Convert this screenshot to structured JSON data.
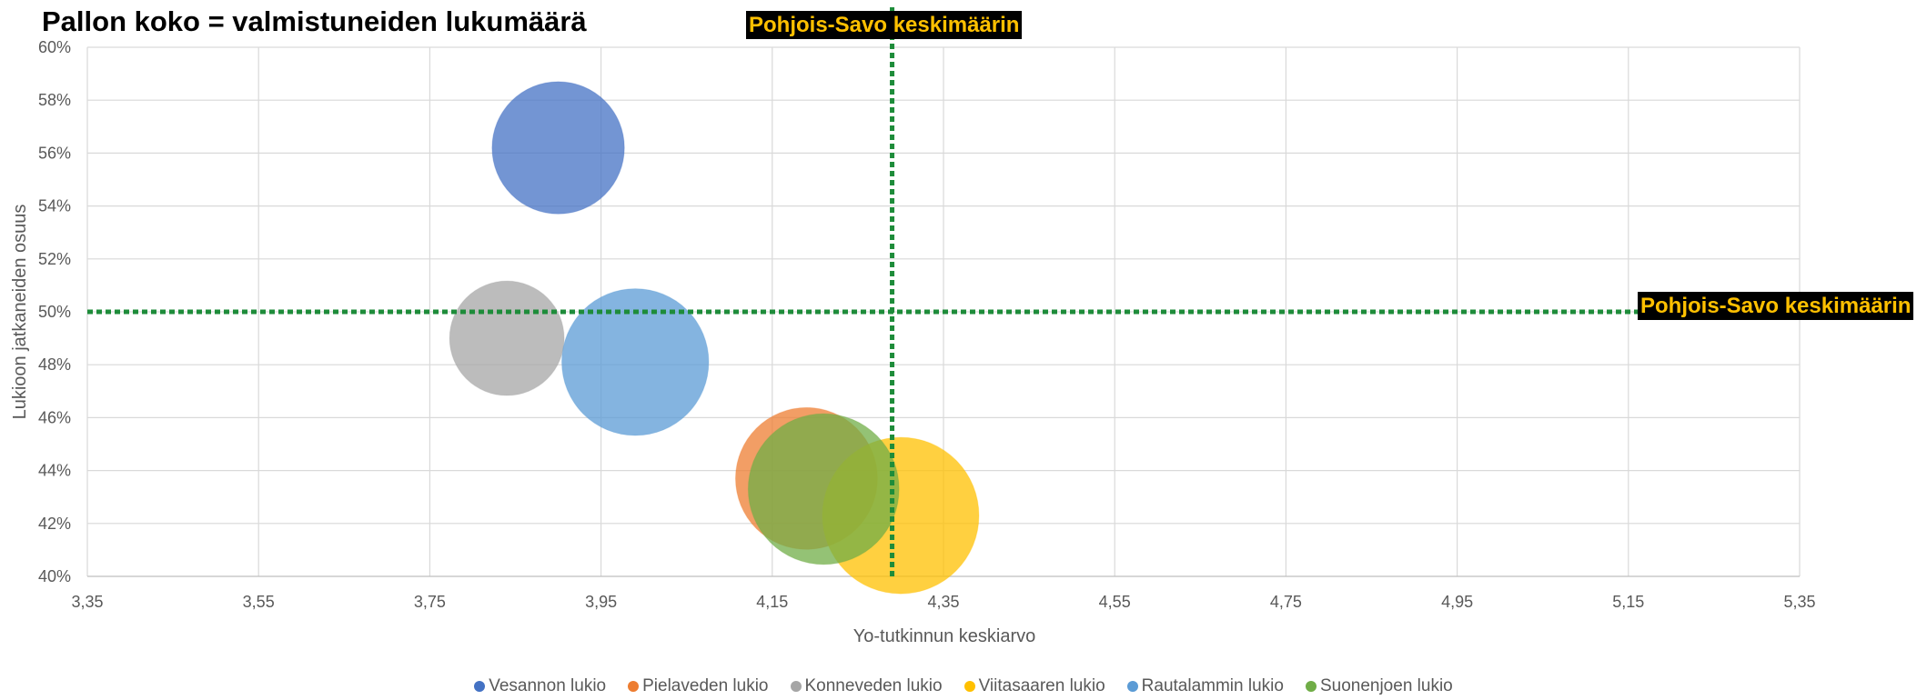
{
  "chart_data": {
    "type": "bubble",
    "title": "Pallon koko = valmistuneiden lukumäärä",
    "xlabel": "Yo-tutkinnun keskiarvo",
    "ylabel": "Lukioon jatkaneiden osuus",
    "xlim": [
      3.35,
      5.35
    ],
    "ylim": [
      0.4,
      0.6
    ],
    "x_ticks": [
      "3,35",
      "3,55",
      "3,75",
      "3,95",
      "4,15",
      "4,35",
      "4,55",
      "4,75",
      "4,95",
      "5,15",
      "5,35"
    ],
    "y_ticks": [
      "40%",
      "42%",
      "44%",
      "46%",
      "48%",
      "50%",
      "52%",
      "54%",
      "56%",
      "58%",
      "60%"
    ],
    "grid": true,
    "legend_position": "bottom",
    "series": [
      {
        "name": "Vesannon lukio",
        "x": 3.9,
        "y": 0.562,
        "size": 0.6,
        "color": "#4472C4"
      },
      {
        "name": "Pielaveden lukio",
        "x": 4.19,
        "y": 0.437,
        "size": 0.69,
        "color": "#ED7D31"
      },
      {
        "name": "Konneveden lukio",
        "x": 3.84,
        "y": 0.49,
        "size": 0.45,
        "color": "#A5A5A5"
      },
      {
        "name": "Viitasaaren lukio",
        "x": 4.3,
        "y": 0.423,
        "size": 0.84,
        "color": "#FFC000"
      },
      {
        "name": "Rautalammin lukio",
        "x": 3.99,
        "y": 0.481,
        "size": 0.74,
        "color": "#5B9BD5"
      },
      {
        "name": "Suonenjoen lukio",
        "x": 4.21,
        "y": 0.433,
        "size": 0.78,
        "color": "#70AD47"
      }
    ],
    "reference_lines": {
      "vertical": {
        "label": "Pohjois-Savo keskimäärin",
        "x": 4.29,
        "color": "#1E8C3A"
      },
      "horizontal": {
        "label": "Pohjois-Savo keskimäärin",
        "y": 0.5,
        "color": "#1E8C3A"
      }
    }
  }
}
